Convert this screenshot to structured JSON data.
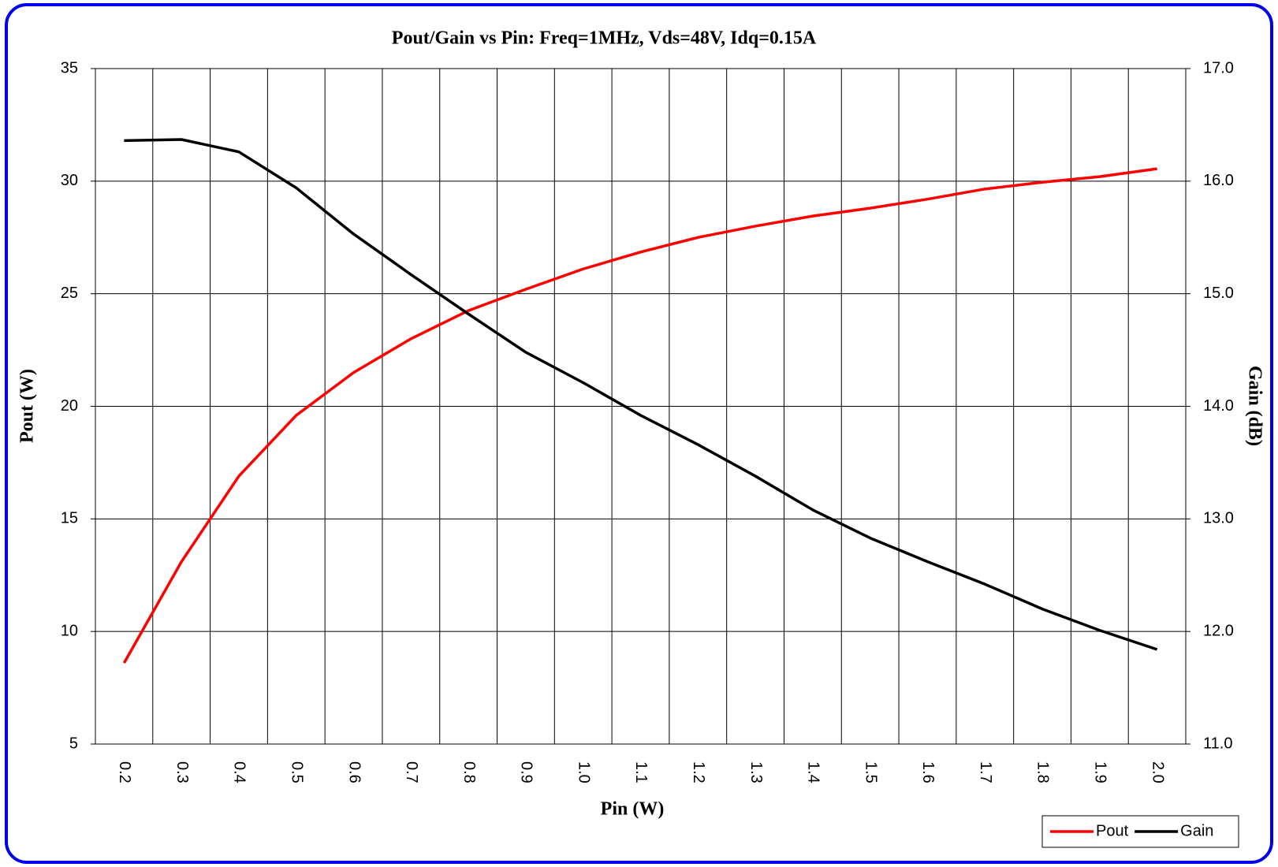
{
  "chart_data": {
    "type": "line",
    "title": "Pout/Gain vs Pin: Freq=1MHz, Vds=48V, Idq=0.15A",
    "x_label": "Pin (W)",
    "y_label": "Pout (W)",
    "y2_label": "Gain (dB)",
    "categories": [
      "0.2",
      "0.3",
      "0.4",
      "0.5",
      "0.6",
      "0.7",
      "0.8",
      "0.9",
      "1.0",
      "1.1",
      "1.2",
      "1.3",
      "1.4",
      "1.5",
      "1.6",
      "1.7",
      "1.8",
      "1.9",
      "2.0"
    ],
    "series": [
      {
        "name": "Pout",
        "color": "#ff0000",
        "values": [
          8.6,
          13.1,
          16.9,
          19.6,
          21.5,
          23.0,
          24.25,
          25.2,
          26.1,
          26.85,
          27.5,
          28.0,
          28.45,
          28.8,
          29.2,
          29.65,
          29.95,
          30.2,
          30.55
        ]
      },
      {
        "name": "Gain",
        "color": "#000000",
        "axis": "y2",
        "values": [
          16.36,
          16.37,
          16.26,
          15.94,
          15.53,
          15.17,
          14.82,
          14.48,
          14.21,
          13.92,
          13.66,
          13.38,
          13.08,
          12.83,
          12.62,
          12.42,
          12.2,
          12.01,
          11.84
        ]
      }
    ],
    "ylim": [
      5,
      35
    ],
    "yticks": [
      5,
      10,
      15,
      20,
      25,
      30,
      35
    ],
    "y2lim": [
      11,
      17
    ],
    "y2ticks": [
      {
        "value": 11,
        "label": "11.0"
      },
      {
        "value": 12,
        "label": "12.0"
      },
      {
        "value": 13,
        "label": "13.0"
      },
      {
        "value": 14,
        "label": "14.0"
      },
      {
        "value": 15,
        "label": "15.0"
      },
      {
        "value": 16,
        "label": "16.0"
      },
      {
        "value": 17,
        "label": "17.0"
      }
    ],
    "grid": true,
    "legend": "bottom-right"
  }
}
